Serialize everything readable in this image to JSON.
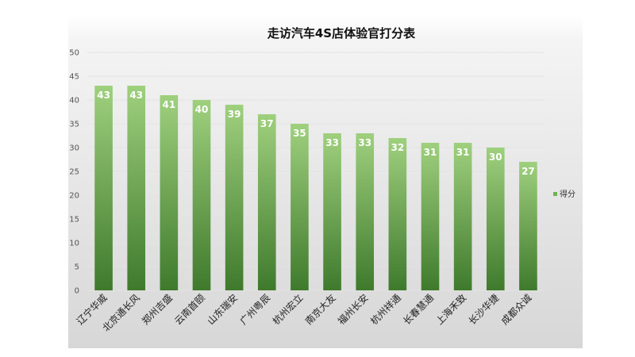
{
  "chart_data": {
    "type": "bar",
    "title": "走访汽车4S店体验官打分表",
    "xlabel": "",
    "ylabel": "",
    "categories": [
      "辽宁华威",
      "北京通长风",
      "郑州吉盛",
      "云南首颐",
      "山东瑞安",
      "广州粤辰",
      "杭州宏立",
      "南京大友",
      "福州长安",
      "杭州祥通",
      "长春慧通",
      "上海禾致",
      "长沙华捷",
      "成都众诚"
    ],
    "series": [
      {
        "name": "得分",
        "values": [
          43,
          43,
          41,
          40,
          39,
          37,
          35,
          33,
          33,
          32,
          31,
          31,
          30,
          27
        ]
      }
    ],
    "ylim": [
      0,
      50
    ],
    "yticks": [
      0,
      5,
      10,
      15,
      20,
      25,
      30,
      35,
      40,
      45,
      50
    ],
    "grid": true,
    "legend": "right",
    "colors": {
      "bar_top": "#9fd07e",
      "bar_bottom": "#3f7a2c",
      "grid": "#e3e3e3",
      "legend_swatch": "#6db34f"
    }
  }
}
